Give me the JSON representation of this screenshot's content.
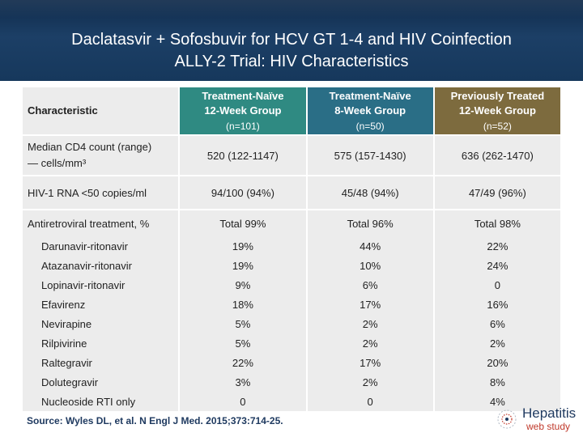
{
  "slide": {
    "title_line1": "Daclatasvir + Sofosbuvir for HCV GT 1-4 and HIV Coinfection",
    "title_line2": "ALLY-2 Trial: HIV Characteristics",
    "source": "Source: Wyles DL, et al. N Engl J Med. 2015;373:714-25."
  },
  "table": {
    "header": {
      "characteristic": "Characteristic",
      "col1_line1": "Treatment-Naïve",
      "col1_line2": "12-Week Group",
      "col1_n": "(n=101)",
      "col2_line1": "Treatment-Naïve",
      "col2_line2": "8-Week Group",
      "col2_n": "(n=50)",
      "col3_line1": "Previously Treated",
      "col3_line2": "12-Week Group",
      "col3_n": "(n=52)"
    },
    "rows": [
      {
        "label_line1": "Median CD4 count (range)",
        "label_line2": "— cells/mm³",
        "v1": "520 (122-1147)",
        "v2": "575 (157-1430)",
        "v3": "636 (262-1470)"
      },
      {
        "label": "HIV-1 RNA <50 copies/ml",
        "v1": "94/100 (94%)",
        "v2": "45/48 (94%)",
        "v3": "47/49 (96%)"
      },
      {
        "label": "Antiretroviral treatment, %",
        "v1": "Total 99%",
        "v2": "Total 96%",
        "v3": "Total 98%"
      },
      {
        "label": "Darunavir-ritonavir",
        "v1": "19%",
        "v2": "44%",
        "v3": "22%"
      },
      {
        "label": "Atazanavir-ritonavir",
        "v1": "19%",
        "v2": "10%",
        "v3": "24%"
      },
      {
        "label": "Lopinavir-ritonavir",
        "v1": "9%",
        "v2": "6%",
        "v3": "0"
      },
      {
        "label": "Efavirenz",
        "v1": "18%",
        "v2": "17%",
        "v3": "16%"
      },
      {
        "label": "Nevirapine",
        "v1": "5%",
        "v2": "2%",
        "v3": "6%"
      },
      {
        "label": "Rilpivirine",
        "v1": "5%",
        "v2": "2%",
        "v3": "2%"
      },
      {
        "label": "Raltegravir",
        "v1": "22%",
        "v2": "17%",
        "v3": "20%"
      },
      {
        "label": "Dolutegravir",
        "v1": "3%",
        "v2": "2%",
        "v3": "8%"
      },
      {
        "label": "Nucleoside RTI only",
        "v1": "0",
        "v2": "0",
        "v3": "4%"
      }
    ]
  },
  "logo": {
    "text_main": "Hepatitis",
    "text_sub": "web study",
    "icon": "hepatitis-logo-icon"
  },
  "colors": {
    "header_bg": "#1c3f66",
    "col1_head": "#2f8a82",
    "col2_head": "#2a6e86",
    "col3_head": "#7d6b3e",
    "row_gray": "#ececec"
  }
}
